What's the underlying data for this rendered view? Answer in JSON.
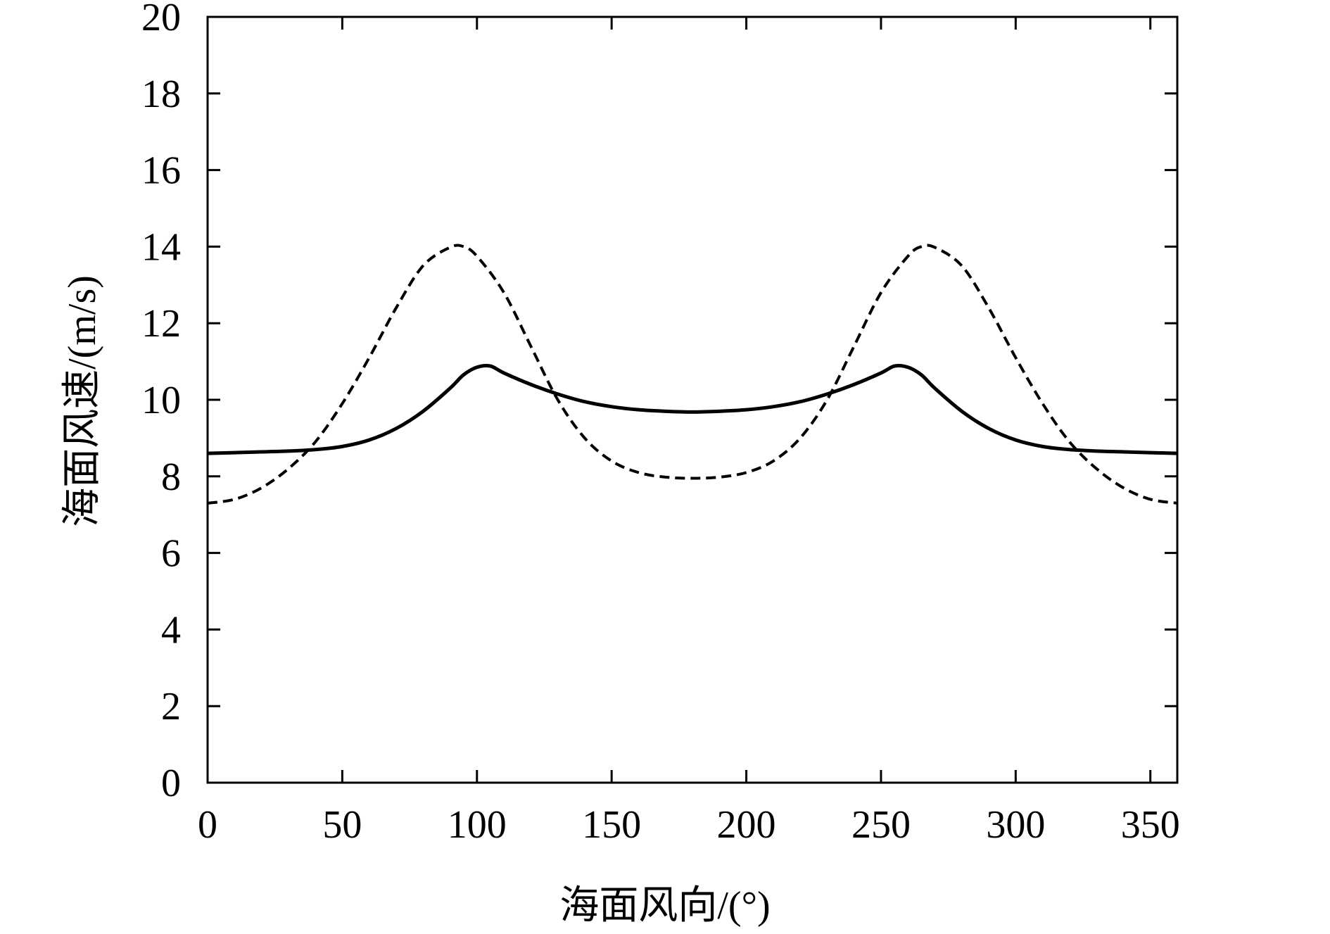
{
  "chart_data": {
    "type": "line",
    "title": "",
    "xlabel": "海面风向/(°)",
    "ylabel": "海面风速/(m/s)",
    "xlim": [
      0,
      360
    ],
    "ylim": [
      0,
      20
    ],
    "xticks": [
      0,
      50,
      100,
      150,
      200,
      250,
      300,
      350
    ],
    "yticks": [
      0,
      2,
      4,
      6,
      8,
      10,
      12,
      14,
      16,
      18,
      20
    ],
    "xtick_labels": [
      "0",
      "50",
      "100",
      "150",
      "200",
      "250",
      "300",
      "350"
    ],
    "ytick_labels": [
      "0",
      "2",
      "4",
      "6",
      "8",
      "10",
      "12",
      "14",
      "16",
      "18",
      "20"
    ],
    "grid": false,
    "legend": "none",
    "series": [
      {
        "style": "solid",
        "x": [
          0,
          10,
          20,
          30,
          40,
          50,
          60,
          70,
          80,
          90,
          95,
          100,
          105,
          110,
          120,
          130,
          140,
          150,
          160,
          170,
          180,
          190,
          200,
          210,
          220,
          230,
          240,
          250,
          255,
          260,
          265,
          270,
          280,
          290,
          300,
          310,
          320,
          330,
          340,
          350,
          360
        ],
        "y": [
          8.6,
          8.62,
          8.64,
          8.66,
          8.7,
          8.78,
          8.95,
          9.25,
          9.7,
          10.3,
          10.65,
          10.85,
          10.88,
          10.7,
          10.4,
          10.15,
          9.95,
          9.82,
          9.74,
          9.7,
          9.68,
          9.7,
          9.74,
          9.82,
          9.95,
          10.15,
          10.4,
          10.7,
          10.88,
          10.85,
          10.65,
          10.3,
          9.7,
          9.25,
          8.95,
          8.78,
          8.7,
          8.66,
          8.64,
          8.62,
          8.6
        ]
      },
      {
        "style": "dashed",
        "x": [
          0,
          10,
          20,
          30,
          40,
          50,
          60,
          70,
          80,
          90,
          95,
          100,
          110,
          120,
          130,
          140,
          150,
          160,
          170,
          180,
          190,
          200,
          210,
          220,
          230,
          240,
          250,
          260,
          265,
          270,
          280,
          290,
          300,
          310,
          320,
          330,
          340,
          350,
          360
        ],
        "y": [
          7.3,
          7.4,
          7.7,
          8.2,
          8.9,
          9.9,
          11.1,
          12.4,
          13.5,
          13.98,
          14.0,
          13.75,
          12.8,
          11.4,
          10.0,
          9.0,
          8.4,
          8.1,
          7.98,
          7.95,
          7.98,
          8.1,
          8.4,
          9.0,
          10.0,
          11.4,
          12.8,
          13.75,
          14.0,
          13.98,
          13.5,
          12.4,
          11.1,
          9.9,
          8.9,
          8.2,
          7.7,
          7.4,
          7.3
        ]
      }
    ]
  }
}
